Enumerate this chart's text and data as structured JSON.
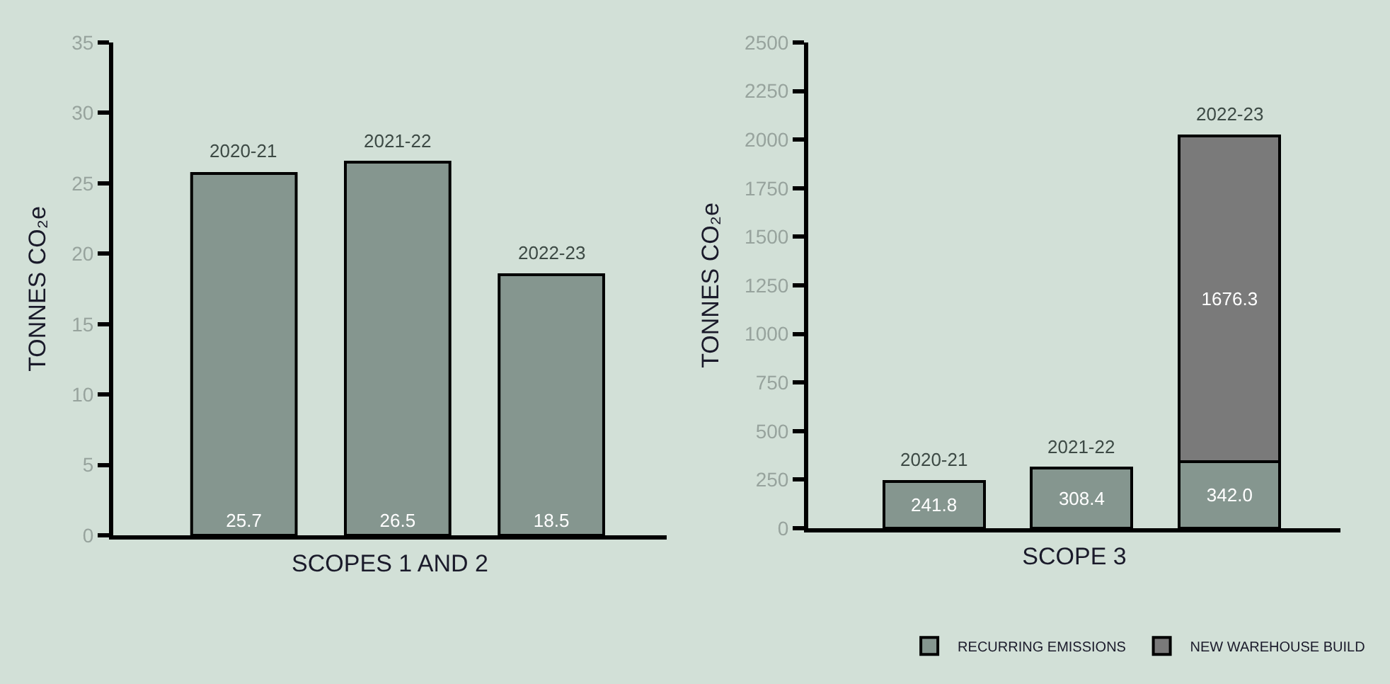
{
  "chart_data": [
    {
      "type": "bar",
      "xlabel": "SCOPES 1 AND 2",
      "ylabel": "TONNES CO₂e",
      "categories": [
        "2020-21",
        "2021-22",
        "2022-23"
      ],
      "series": [
        {
          "color": "#85968f",
          "values": [
            25.7,
            26.5,
            18.5
          ]
        }
      ],
      "ylim": [
        0,
        35
      ],
      "yticks": [
        0,
        5,
        10,
        15,
        20,
        25,
        30,
        35
      ],
      "grid": false,
      "legend": false,
      "data_labels": true
    },
    {
      "type": "bar",
      "xlabel": "SCOPE 3",
      "ylabel": "TONNES CO₂e",
      "categories": [
        "2020-21",
        "2021-22",
        "2022-23"
      ],
      "stacked": true,
      "series": [
        {
          "name": "RECURRING EMISSIONS",
          "color": "#85968f",
          "values": [
            241.8,
            308.4,
            342.0
          ],
          "value_labels": [
            "241.8",
            "308.4",
            "342.0"
          ]
        },
        {
          "name": "NEW WAREHOUSE BUILD",
          "color": "#7a7a7a",
          "values": [
            null,
            null,
            1676.3
          ],
          "value_labels": [
            null,
            null,
            "1676.3"
          ]
        }
      ],
      "ylim": [
        0,
        2500
      ],
      "yticks": [
        0,
        250,
        500,
        750,
        1000,
        1250,
        1500,
        1750,
        2000,
        2250,
        2500
      ],
      "grid": false,
      "legend": "bottom right"
    }
  ]
}
